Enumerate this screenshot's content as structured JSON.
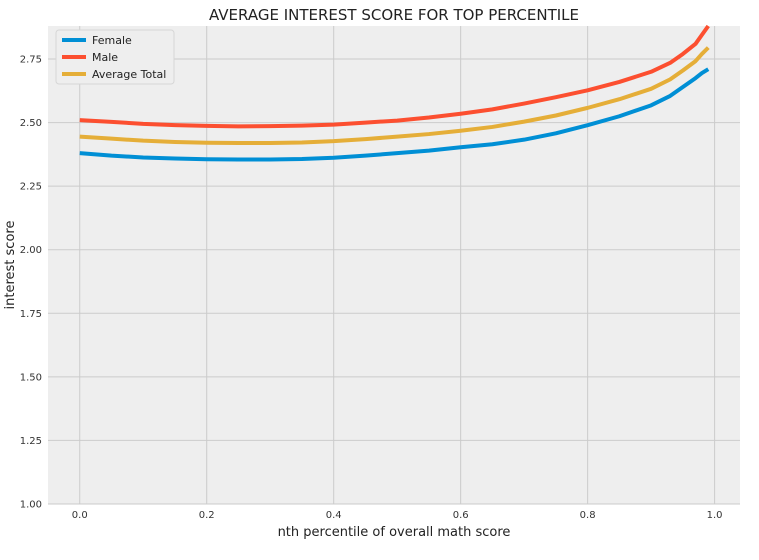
{
  "chart_data": {
    "type": "line",
    "title": "AVERAGE INTEREST SCORE FOR TOP PERCENTILE",
    "xlabel": "nth percentile of overall math score",
    "ylabel": "interest score",
    "xlim": [
      -0.05,
      1.04
    ],
    "ylim": [
      1.0,
      2.88
    ],
    "x_ticks": [
      0.0,
      0.2,
      0.4,
      0.6,
      0.8,
      1.0
    ],
    "x_tick_labels": [
      "0.0",
      "0.2",
      "0.4",
      "0.6",
      "0.8",
      "1.0"
    ],
    "y_ticks": [
      1.0,
      1.25,
      1.5,
      1.75,
      2.0,
      2.25,
      2.5,
      2.75
    ],
    "y_tick_labels": [
      "1.00",
      "1.25",
      "1.50",
      "1.75",
      "2.00",
      "2.25",
      "2.50",
      "2.75"
    ],
    "grid": true,
    "legend_position": "top-left",
    "background_color": "#eeeeee",
    "grid_color": "#cbcbcb",
    "x": [
      0.0,
      0.05,
      0.1,
      0.15,
      0.2,
      0.25,
      0.3,
      0.35,
      0.4,
      0.45,
      0.5,
      0.55,
      0.6,
      0.65,
      0.7,
      0.75,
      0.8,
      0.85,
      0.9,
      0.93,
      0.95,
      0.97,
      0.98,
      0.99
    ],
    "series": [
      {
        "name": "Female",
        "color": "#008fd5",
        "values": [
          2.38,
          2.37,
          2.363,
          2.359,
          2.356,
          2.355,
          2.355,
          2.357,
          2.362,
          2.37,
          2.38,
          2.39,
          2.403,
          2.415,
          2.433,
          2.458,
          2.49,
          2.525,
          2.568,
          2.605,
          2.64,
          2.675,
          2.695,
          2.71
        ]
      },
      {
        "name": "Male",
        "color": "#fc4f30",
        "values": [
          2.51,
          2.503,
          2.495,
          2.49,
          2.487,
          2.485,
          2.486,
          2.488,
          2.492,
          2.5,
          2.508,
          2.52,
          2.535,
          2.552,
          2.575,
          2.6,
          2.627,
          2.66,
          2.7,
          2.735,
          2.77,
          2.81,
          2.845,
          2.88
        ]
      },
      {
        "name": "Average Total",
        "color": "#e5ae38",
        "values": [
          2.445,
          2.437,
          2.429,
          2.424,
          2.421,
          2.42,
          2.42,
          2.422,
          2.427,
          2.435,
          2.445,
          2.455,
          2.468,
          2.483,
          2.504,
          2.528,
          2.558,
          2.592,
          2.633,
          2.67,
          2.705,
          2.742,
          2.77,
          2.795
        ]
      }
    ]
  }
}
